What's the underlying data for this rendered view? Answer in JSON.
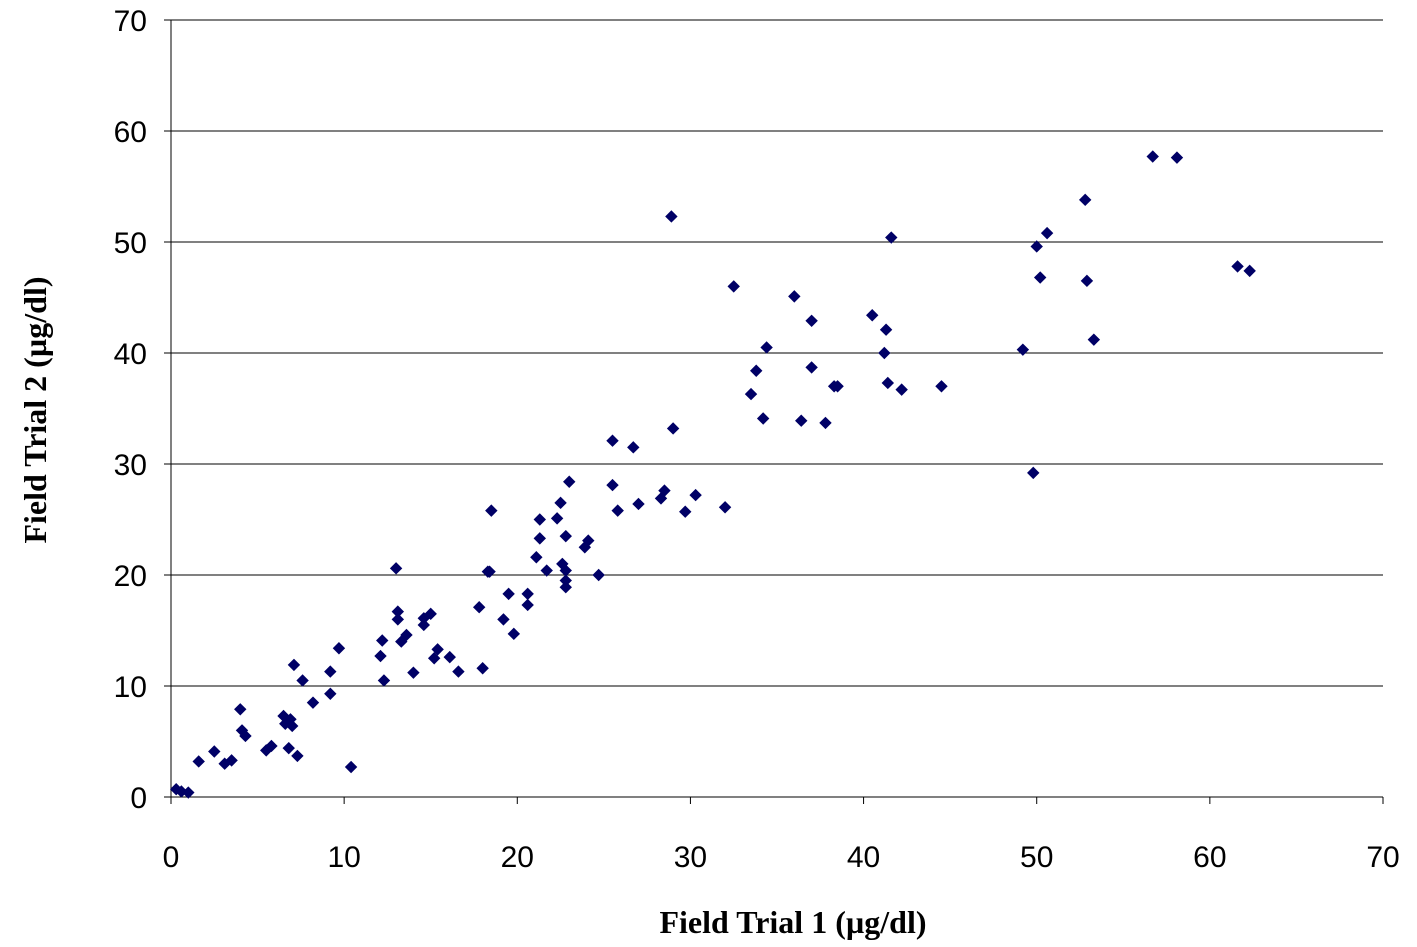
{
  "chart_data": {
    "type": "scatter",
    "title": "",
    "xlabel": "Field Trial 1 (µg/dl)",
    "ylabel": "Field Trial 2 (µg/dl)",
    "xlim": [
      0,
      70
    ],
    "ylim": [
      0,
      70
    ],
    "x_ticks": [
      "0",
      "10",
      "20",
      "30",
      "40",
      "50",
      "60",
      "70"
    ],
    "y_ticks": [
      "0",
      "10",
      "20",
      "30",
      "40",
      "50",
      "60",
      "70"
    ],
    "grid": "horizontal",
    "legend": "none",
    "marker": "diamond",
    "marker_color": "#000066",
    "points": [
      [
        0.3,
        0.7
      ],
      [
        0.6,
        0.5
      ],
      [
        1.0,
        0.4
      ],
      [
        1.6,
        3.2
      ],
      [
        2.5,
        4.1
      ],
      [
        3.1,
        3.0
      ],
      [
        3.5,
        3.3
      ],
      [
        4.0,
        7.9
      ],
      [
        4.1,
        6.0
      ],
      [
        4.3,
        5.5
      ],
      [
        5.5,
        4.2
      ],
      [
        5.8,
        4.6
      ],
      [
        6.5,
        7.3
      ],
      [
        6.6,
        6.6
      ],
      [
        6.8,
        4.4
      ],
      [
        6.9,
        7.0
      ],
      [
        7.0,
        6.4
      ],
      [
        7.1,
        11.9
      ],
      [
        7.3,
        3.7
      ],
      [
        7.6,
        10.5
      ],
      [
        8.2,
        8.5
      ],
      [
        9.2,
        11.3
      ],
      [
        9.2,
        9.3
      ],
      [
        9.7,
        13.4
      ],
      [
        10.4,
        2.7
      ],
      [
        12.2,
        14.1
      ],
      [
        12.1,
        12.7
      ],
      [
        12.3,
        10.5
      ],
      [
        13.0,
        20.6
      ],
      [
        13.1,
        16.7
      ],
      [
        13.1,
        16.0
      ],
      [
        13.3,
        14.0
      ],
      [
        13.6,
        14.6
      ],
      [
        14.0,
        11.2
      ],
      [
        14.6,
        16.1
      ],
      [
        14.6,
        15.5
      ],
      [
        15.0,
        16.5
      ],
      [
        15.2,
        12.5
      ],
      [
        15.4,
        13.3
      ],
      [
        16.1,
        12.6
      ],
      [
        16.6,
        11.3
      ],
      [
        17.8,
        17.1
      ],
      [
        18.0,
        11.6
      ],
      [
        18.3,
        20.3
      ],
      [
        18.4,
        20.3
      ],
      [
        18.5,
        25.8
      ],
      [
        19.2,
        16.0
      ],
      [
        19.5,
        18.3
      ],
      [
        19.8,
        14.7
      ],
      [
        20.6,
        18.3
      ],
      [
        20.6,
        17.3
      ],
      [
        21.1,
        21.6
      ],
      [
        21.3,
        25.0
      ],
      [
        21.3,
        23.3
      ],
      [
        21.7,
        20.4
      ],
      [
        22.3,
        25.1
      ],
      [
        22.5,
        26.5
      ],
      [
        22.6,
        21.0
      ],
      [
        22.8,
        23.5
      ],
      [
        22.8,
        20.4
      ],
      [
        22.8,
        19.5
      ],
      [
        22.8,
        18.9
      ],
      [
        23.0,
        28.4
      ],
      [
        23.9,
        22.5
      ],
      [
        24.1,
        23.1
      ],
      [
        24.7,
        20.0
      ],
      [
        25.5,
        32.1
      ],
      [
        25.5,
        28.1
      ],
      [
        25.8,
        25.8
      ],
      [
        26.7,
        31.5
      ],
      [
        27.0,
        26.4
      ],
      [
        28.3,
        26.9
      ],
      [
        28.5,
        27.6
      ],
      [
        28.9,
        52.3
      ],
      [
        29.0,
        33.2
      ],
      [
        29.7,
        25.7
      ],
      [
        30.3,
        27.2
      ],
      [
        32.0,
        26.1
      ],
      [
        32.5,
        46.0
      ],
      [
        33.5,
        36.3
      ],
      [
        33.8,
        38.4
      ],
      [
        34.2,
        34.1
      ],
      [
        34.4,
        40.5
      ],
      [
        36.0,
        45.1
      ],
      [
        36.4,
        33.9
      ],
      [
        37.0,
        42.9
      ],
      [
        37.0,
        38.7
      ],
      [
        37.8,
        33.7
      ],
      [
        38.3,
        37.0
      ],
      [
        38.5,
        37.0
      ],
      [
        40.5,
        43.4
      ],
      [
        41.2,
        40.0
      ],
      [
        41.3,
        42.1
      ],
      [
        41.4,
        37.3
      ],
      [
        41.6,
        50.4
      ],
      [
        42.2,
        36.7
      ],
      [
        44.5,
        37.0
      ],
      [
        49.2,
        40.3
      ],
      [
        49.8,
        29.2
      ],
      [
        50.0,
        49.6
      ],
      [
        50.2,
        46.8
      ],
      [
        50.6,
        50.8
      ],
      [
        52.8,
        53.8
      ],
      [
        52.9,
        46.5
      ],
      [
        53.3,
        41.2
      ],
      [
        56.7,
        57.7
      ],
      [
        58.1,
        57.6
      ],
      [
        61.6,
        47.8
      ],
      [
        62.3,
        47.4
      ]
    ]
  }
}
